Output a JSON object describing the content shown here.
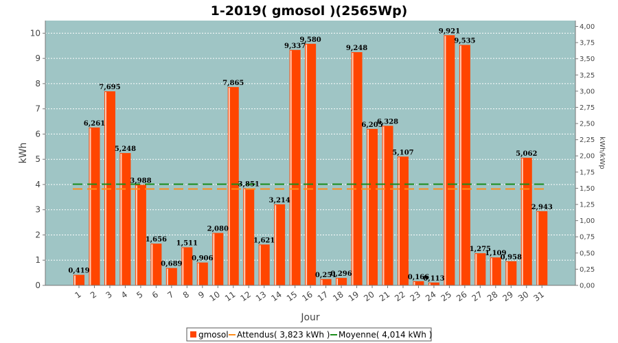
{
  "chart_data": {
    "type": "bar",
    "title": "1-2019( gmosol )(2565Wp)",
    "xlabel": "Jour",
    "ylabel": "kWh",
    "y2label": "kWh/kWp",
    "ylim": [
      0,
      10.5
    ],
    "y2lim": [
      0,
      4.09
    ],
    "yticks": [
      "0",
      "1",
      "2",
      "3",
      "4",
      "5",
      "6",
      "7",
      "8",
      "9",
      "10"
    ],
    "y2ticks": [
      "0,00",
      "0,25",
      "0,50",
      "0,75",
      "1,00",
      "1,25",
      "1,50",
      "1,75",
      "2,00",
      "2,25",
      "2,50",
      "2,75",
      "3,00",
      "3,25",
      "3,50",
      "3,75",
      "4,00"
    ],
    "categories": [
      "1",
      "2",
      "3",
      "4",
      "5",
      "6",
      "7",
      "8",
      "9",
      "10",
      "11",
      "12",
      "13",
      "14",
      "15",
      "16",
      "17",
      "18",
      "19",
      "20",
      "21",
      "22",
      "23",
      "24",
      "25",
      "26",
      "27",
      "28",
      "29",
      "30",
      "31"
    ],
    "series": [
      {
        "name": "gmosol",
        "color": "#ff4500",
        "values": [
          0.419,
          6.261,
          7.695,
          5.248,
          3.988,
          1.656,
          0.689,
          1.511,
          0.906,
          2.08,
          7.865,
          3.851,
          1.621,
          3.214,
          9.337,
          9.58,
          0.251,
          0.296,
          9.248,
          6.205,
          6.328,
          5.107,
          0.166,
          0.113,
          9.921,
          9.535,
          1.275,
          1.109,
          0.958,
          5.062,
          2.943
        ],
        "labels": [
          "0,419",
          "6,261",
          "7,695",
          "5,248",
          "3,988",
          "1,656",
          "0,689",
          "1,511",
          "0,906",
          "2,080",
          "7,865",
          "3,851",
          "1,621",
          "3,214",
          "9,337",
          "9,580",
          "0,251",
          "0,296",
          "9,248",
          "6,205",
          "6,328",
          "5,107",
          "0,166",
          "0,113",
          "9,921",
          "9,535",
          "1,275",
          "1,109",
          "0,958",
          "5,062",
          "2,943"
        ]
      }
    ],
    "reference_lines": [
      {
        "name": "Attendus( 3,823 kWh )",
        "value": 3.823,
        "color": "#ff8c1a"
      },
      {
        "name": "Moyenne( 4,014 kWh )",
        "value": 4.014,
        "color": "#1a8c1a"
      }
    ],
    "legend": {
      "placement": "bottom-center",
      "entries": [
        "gmosol",
        "Attendus( 3,823 kWh )",
        "Moyenne( 4,014 kWh )"
      ]
    },
    "grid": true,
    "plot_background": "#9fc5c5"
  }
}
